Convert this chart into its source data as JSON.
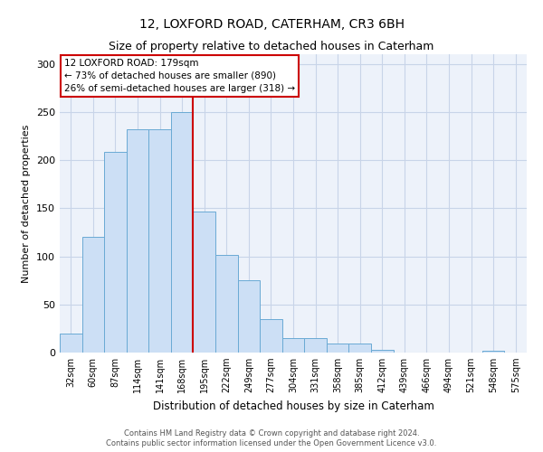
{
  "title": "12, LOXFORD ROAD, CATERHAM, CR3 6BH",
  "subtitle": "Size of property relative to detached houses in Caterham",
  "xlabel": "Distribution of detached houses by size in Caterham",
  "ylabel": "Number of detached properties",
  "bar_labels": [
    "32sqm",
    "60sqm",
    "87sqm",
    "114sqm",
    "141sqm",
    "168sqm",
    "195sqm",
    "222sqm",
    "249sqm",
    "277sqm",
    "304sqm",
    "331sqm",
    "358sqm",
    "385sqm",
    "412sqm",
    "439sqm",
    "466sqm",
    "494sqm",
    "521sqm",
    "548sqm",
    "575sqm"
  ],
  "bar_values": [
    20,
    120,
    209,
    232,
    232,
    250,
    147,
    101,
    75,
    35,
    15,
    15,
    9,
    9,
    3,
    0,
    0,
    0,
    0,
    2,
    0
  ],
  "bar_color": "#ccdff5",
  "bar_edgecolor": "#6aaad4",
  "ylim": [
    0,
    310
  ],
  "yticks": [
    0,
    50,
    100,
    150,
    200,
    250,
    300
  ],
  "vline_color": "#cc0000",
  "annotation_title": "12 LOXFORD ROAD: 179sqm",
  "annotation_line1": "← 73% of detached houses are smaller (890)",
  "annotation_line2": "26% of semi-detached houses are larger (318) →",
  "annotation_box_edgecolor": "#cc0000",
  "footer1": "Contains HM Land Registry data © Crown copyright and database right 2024.",
  "footer2": "Contains public sector information licensed under the Open Government Licence v3.0.",
  "bg_color": "#edf2fa",
  "grid_color": "#c8d4e8",
  "title_fontsize": 10,
  "subtitle_fontsize": 9,
  "ylabel_fontsize": 8,
  "xlabel_fontsize": 8.5,
  "tick_fontsize": 7,
  "ytick_fontsize": 8,
  "annotation_fontsize": 7.5,
  "footer_fontsize": 6
}
